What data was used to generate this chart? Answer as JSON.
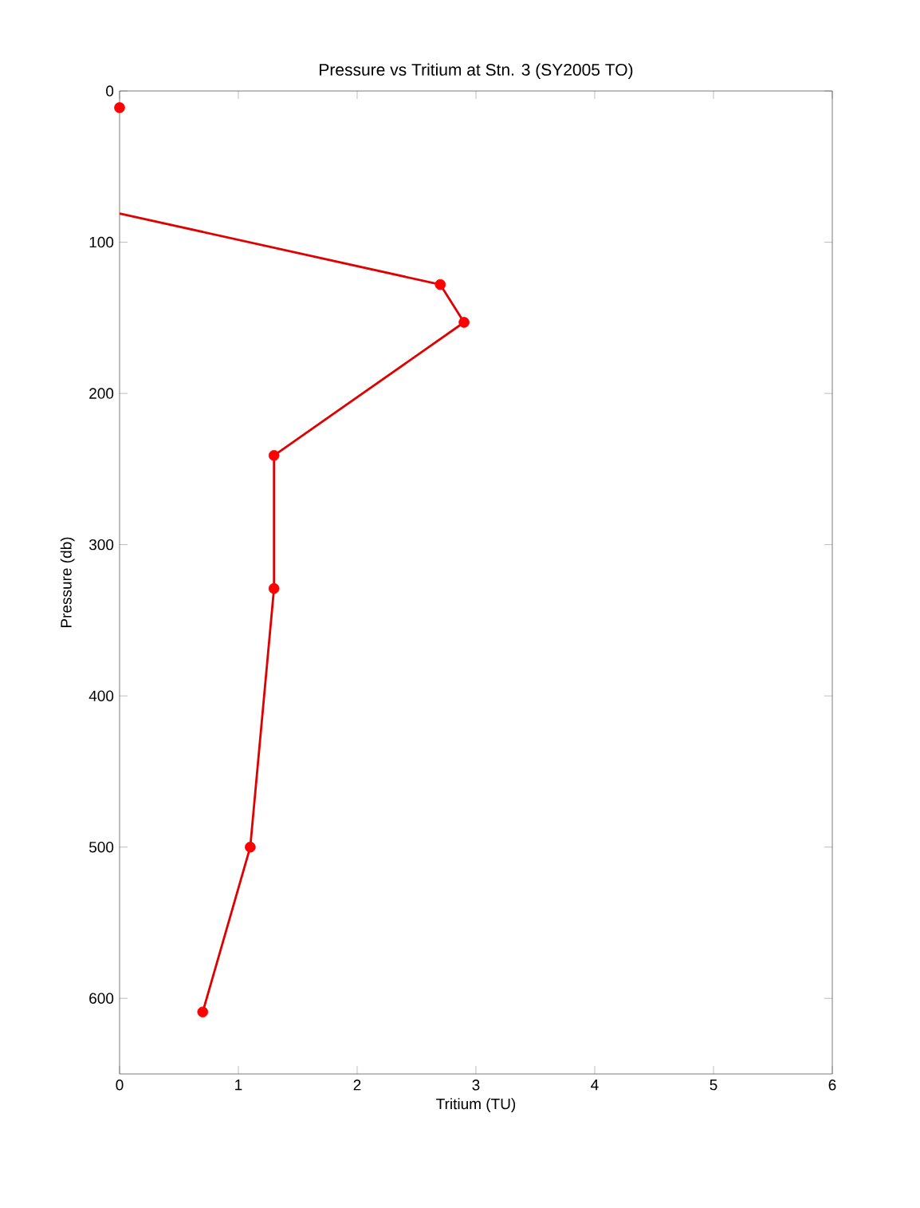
{
  "chart_data": {
    "type": "line",
    "title": "Pressure vs Tritium at Stn. 3 (SY2005 TO)",
    "xlabel": "Tritium (TU)",
    "ylabel": "Pressure (db)",
    "xlim": [
      0,
      6
    ],
    "xticks": [
      0,
      1,
      2,
      3,
      4,
      5,
      6
    ],
    "ylim": [
      650,
      0
    ],
    "yticks": [
      0,
      100,
      200,
      300,
      400,
      500,
      600
    ],
    "line_style": "solid",
    "series": [
      {
        "color": "#e00000",
        "marker": "none",
        "x": [
          0,
          2.7,
          2.9,
          1.3,
          1.3,
          1.1,
          0.7
        ],
        "values": [
          81,
          128,
          153,
          241,
          329,
          500,
          609
        ]
      },
      {
        "type": "scatter",
        "color": "#ff0000",
        "marker": "circle",
        "x": [
          0,
          2.7,
          2.9,
          1.3,
          1.3,
          1.1,
          0.7
        ],
        "values": [
          11,
          128,
          153,
          241,
          329,
          500,
          609
        ]
      }
    ]
  }
}
